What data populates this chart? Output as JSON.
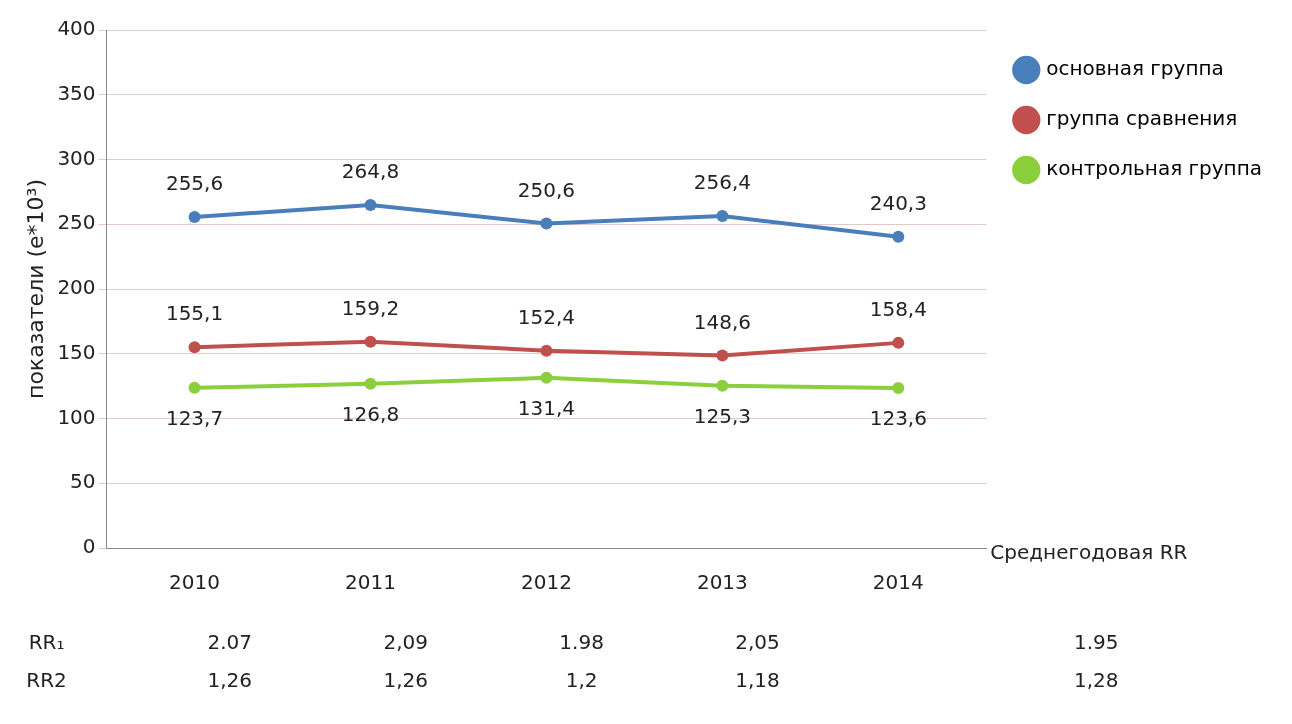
{
  "chart_data": {
    "type": "line",
    "ylabel": "показатели (е*10³)",
    "categories": [
      "2010",
      "2011",
      "2012",
      "2013",
      "2014"
    ],
    "series": [
      {
        "name": "основная группа",
        "color": "#4a7ebb",
        "values": [
          255.6,
          264.8,
          250.6,
          256.4,
          240.3
        ],
        "value_labels": [
          "255,6",
          "264,8",
          "250,6",
          "256,4",
          "240,3"
        ]
      },
      {
        "name": "группа сравнения",
        "color": "#c0504d",
        "values": [
          155.1,
          159.2,
          152.4,
          148.6,
          158.4
        ],
        "value_labels": [
          "155,1",
          "159,2",
          "152,4",
          "148,6",
          "158,4"
        ]
      },
      {
        "name": "контрольная группа",
        "color": "#8ccf3c",
        "values": [
          123.7,
          126.8,
          131.4,
          125.3,
          123.6
        ],
        "value_labels": [
          "123,7",
          "126,8",
          "131,4",
          "125,3",
          "123,6"
        ]
      }
    ],
    "ylim": [
      0,
      400
    ],
    "yticks": [
      0,
      50,
      100,
      150,
      200,
      250,
      300,
      350,
      400
    ],
    "grid": "y",
    "legend": "right",
    "marker": "circle",
    "line_style": "solid",
    "annotations": [
      "Среднегодовая RR",
      "RR₁",
      "2.07",
      "2,09",
      "1.98",
      "2,05",
      "1.95",
      "RR2",
      "1,26",
      "1,26",
      "1,2",
      "1,18",
      "1,28"
    ]
  }
}
